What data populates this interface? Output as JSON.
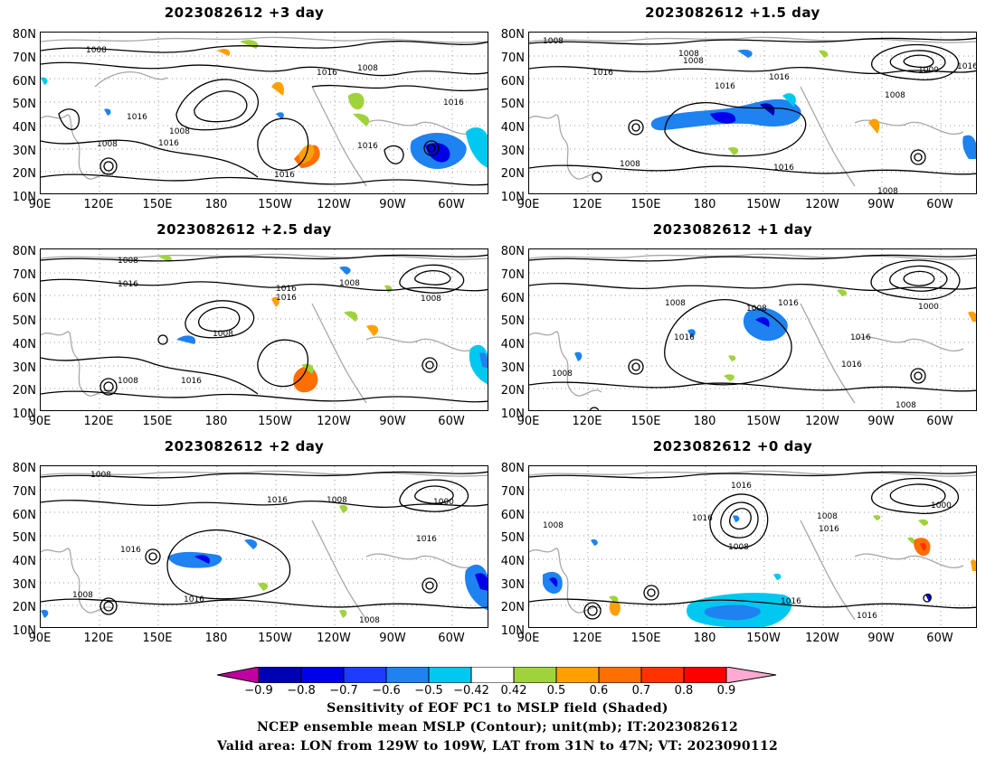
{
  "panels": [
    {
      "title": "2023082612  +3 day",
      "contour_labels": [
        "1008",
        "1016",
        "1016",
        "1008",
        "1016",
        "1016",
        "1008",
        "1016",
        "1016",
        "1008"
      ]
    },
    {
      "title": "2023082612  +1.5 day",
      "contour_labels": [
        "1008",
        "1008",
        "1016",
        "1008",
        "1016",
        "1016",
        "1000",
        "1016",
        "1008",
        "1016",
        "1008",
        "1008"
      ]
    },
    {
      "title": "2023082612  +2.5 day",
      "contour_labels": [
        "1008",
        "1016",
        "1016",
        "1016",
        "1008",
        "1008",
        "1008",
        "1016",
        "1008"
      ]
    },
    {
      "title": "2023082612  +1 day",
      "contour_labels": [
        "1008",
        "1008",
        "1016",
        "1016",
        "1000",
        "1016",
        "1008",
        "1016",
        "1008"
      ]
    },
    {
      "title": "2023082612  +2 day",
      "contour_labels": [
        "1008",
        "1016",
        "1008",
        "1016",
        "1000",
        "1016",
        "1008",
        "1016",
        "1008"
      ]
    },
    {
      "title": "2023082612  +0 day",
      "contour_labels": [
        "1016",
        "1016",
        "1008",
        "1008",
        "1016",
        "1008",
        "1000",
        "1016",
        "1016"
      ]
    }
  ],
  "axes": {
    "lat_labels": [
      "80N",
      "70N",
      "60N",
      "50N",
      "40N",
      "30N",
      "20N",
      "10N"
    ],
    "lon_labels": [
      "90E",
      "120E",
      "150E",
      "180",
      "150W",
      "120W",
      "90W",
      "60W"
    ]
  },
  "colorbar": {
    "labels": [
      "−0.9",
      "−0.8",
      "−0.7",
      "−0.6",
      "−0.5",
      "−0.42",
      "0.42",
      "0.5",
      "0.6",
      "0.7",
      "0.8",
      "0.9"
    ],
    "colors": [
      "#c000a0",
      "#0000b4",
      "#0000e8",
      "#1e3cff",
      "#1e82f0",
      "#00c8f0",
      "#ffffff",
      "#a0d23c",
      "#ffa000",
      "#ff6e00",
      "#ff3200",
      "#ff0000",
      "#ffaad2"
    ]
  },
  "colors": {
    "contour": "#000000",
    "coastline": "#a8a8a8",
    "grid": "#9a9a9a"
  },
  "captions": {
    "line1": "Sensitivity of EOF PC1 to MSLP field (Shaded)",
    "line2": "NCEP ensemble mean MSLP (Contour); unit(mb); IT:2023082612",
    "line3": "Valid area: LON from 129W to 109W, LAT from 31N to 47N; VT: 2023090112"
  }
}
